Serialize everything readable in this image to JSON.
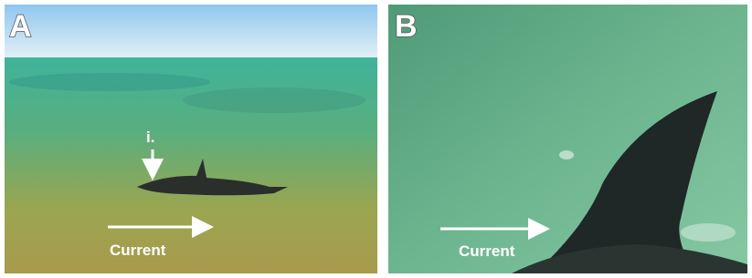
{
  "panels": [
    {
      "label": "A",
      "marker": "i.",
      "arrow_label": "Current"
    },
    {
      "label": "B",
      "arrow_label": "Current"
    }
  ]
}
